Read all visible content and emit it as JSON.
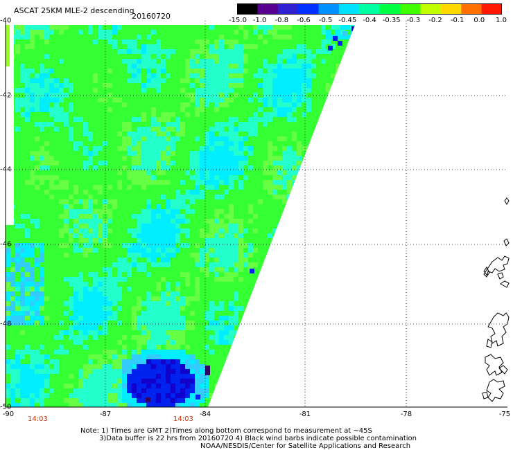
{
  "header": {
    "title": "ASCAT 25KM MLE-2 descending",
    "date": "20160720"
  },
  "colorbar": {
    "labels": [
      "-15.0",
      "-1.0",
      "-0.8",
      "-0.6",
      "-0.5",
      "-0.45",
      "-0.4",
      "-0.35",
      "-0.3",
      "-0.2",
      "-0.1",
      "0.0",
      "1.0"
    ],
    "colors": [
      "#000000",
      "#5a0090",
      "#3020d0",
      "#0030ff",
      "#0090ff",
      "#00e0ff",
      "#00ffa0",
      "#00ff40",
      "#40ff00",
      "#c0ff00",
      "#ffd800",
      "#ff7000",
      "#ff1800"
    ]
  },
  "map": {
    "lat_labels": [
      "-40",
      "-42",
      "-44",
      "-46",
      "-48",
      "-50"
    ],
    "lon_labels": [
      "-90",
      "-87",
      "-84",
      "-81",
      "-78",
      "-75"
    ],
    "time_labels": [
      "14:03",
      "14:03"
    ],
    "swath_colors": {
      "base": "#33ff33",
      "light": "#66ff44",
      "cyan": "#22ffcc",
      "aqua": "#00eeff",
      "sky": "#33ccff",
      "blue": "#0022ee",
      "navy": "#1100cc",
      "purple": "#330066",
      "lime": "#99ff22"
    }
  },
  "notes": {
    "line1": "Note: 1) Times are GMT 2)Times along bottom correspond to measurement at ~45S",
    "line2": "3)Data buffer is 22 hrs from 20160720 4) Black wind barbs indicate possible contamination",
    "line3": "NOAA/NESDIS/Center for Satellite Applications and Research"
  }
}
